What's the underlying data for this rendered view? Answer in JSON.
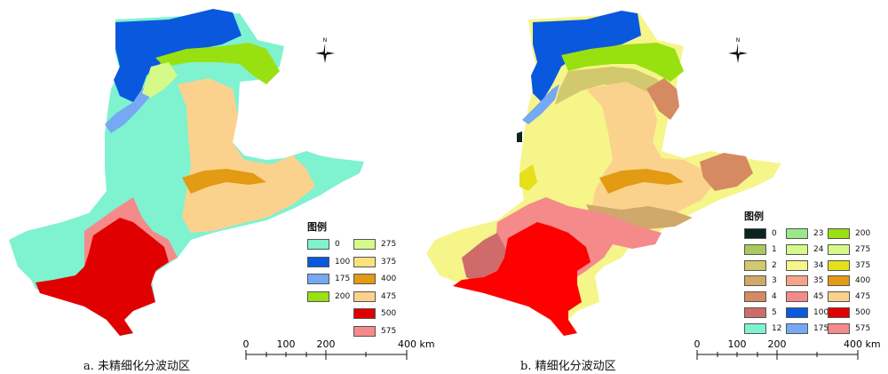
{
  "panels": [
    {
      "id": "a",
      "caption": "a. 未精细化分波动区",
      "legend_title": "图例",
      "legend_columns": [
        [
          {
            "label": "0",
            "color": "#7ff2cf"
          },
          {
            "label": "100",
            "color": "#0a58de"
          },
          {
            "label": "175",
            "color": "#76a8f3"
          },
          {
            "label": "200",
            "color": "#99e011"
          },
          {
            "label": "",
            "color": ""
          }
        ],
        [
          {
            "label": "275",
            "color": "#d6fa8a"
          },
          {
            "label": "375",
            "color": "#fbe27f"
          },
          {
            "label": "400",
            "color": "#e29b12"
          },
          {
            "label": "475",
            "color": "#fbd28d"
          },
          {
            "label": "500",
            "color": "#e00000"
          },
          {
            "label": "575",
            "color": "#f58a8a"
          }
        ]
      ],
      "scale": {
        "ticks": [
          "0",
          "100",
          "200",
          "400 km"
        ]
      }
    },
    {
      "id": "b",
      "caption": "b. 精细化分波动区",
      "legend_title": "图例",
      "legend_columns": [
        [
          {
            "label": "0",
            "color": "#0b2320"
          },
          {
            "label": "1",
            "color": "#a9c95f"
          },
          {
            "label": "2",
            "color": "#d2c96e"
          },
          {
            "label": "3",
            "color": "#d1a86b"
          },
          {
            "label": "4",
            "color": "#d58a62"
          },
          {
            "label": "5",
            "color": "#cf6b6b"
          },
          {
            "label": "12",
            "color": "#7ff2cf"
          }
        ],
        [
          {
            "label": "23",
            "color": "#9be88a"
          },
          {
            "label": "24",
            "color": "#d6fa8a"
          },
          {
            "label": "34",
            "color": "#f5f58a"
          },
          {
            "label": "35",
            "color": "#f5a48a"
          },
          {
            "label": "45",
            "color": "#f58a8a"
          },
          {
            "label": "100",
            "color": "#0a58de"
          },
          {
            "label": "175",
            "color": "#76a8f3"
          }
        ],
        [
          {
            "label": "200",
            "color": "#99e011"
          },
          {
            "label": "275",
            "color": "#d6fa8a"
          },
          {
            "label": "375",
            "color": "#e6e01a"
          },
          {
            "label": "400",
            "color": "#e29b12"
          },
          {
            "label": "475",
            "color": "#fbd28d"
          },
          {
            "label": "500",
            "color": "#e00000"
          },
          {
            "label": "575",
            "color": "#f58a8a"
          }
        ]
      ],
      "scale": {
        "ticks": [
          "0",
          "100",
          "200",
          "400 km"
        ]
      }
    }
  ],
  "north_arrow_label": "N"
}
